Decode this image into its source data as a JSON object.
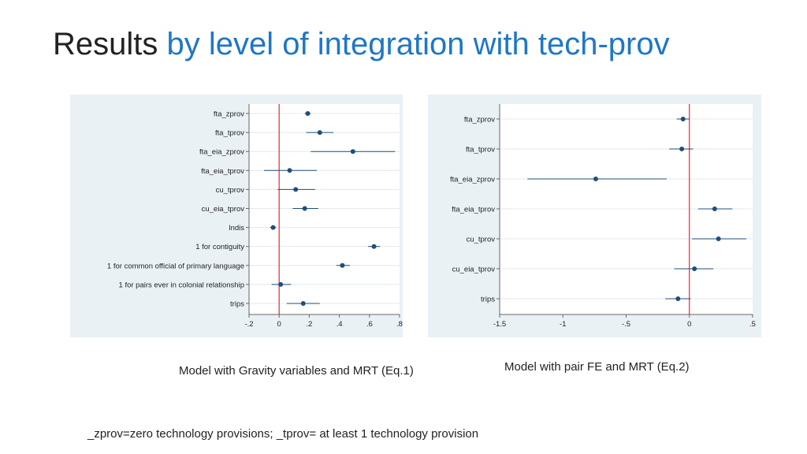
{
  "title": {
    "part1": "Results",
    "part2": "by level of integration with tech-prov"
  },
  "colors": {
    "title_accent": "#1f77c4",
    "point": "#1f4e79",
    "ci_line": "#1f4e79",
    "zero_line": "#e0293a",
    "panel_bg": "#eaf1f5"
  },
  "chart_data": [
    {
      "type": "scatter",
      "subtype": "coefficient-plot",
      "caption": "Model with Gravity variables and MRT (Eq.1)",
      "xlim": [
        -0.2,
        0.8
      ],
      "xticks": [
        -0.2,
        0,
        0.2,
        0.4,
        0.6,
        0.8
      ],
      "xtick_labels": [
        "-.2",
        "0",
        ".2",
        ".4",
        ".6",
        ".8"
      ],
      "zero_line": 0,
      "categories": [
        "fta_zprov",
        "fta_tprov",
        "fta_eia_zprov",
        "fta_eia_tprov",
        "cu_tprov",
        "cu_eia_tprov",
        "lndis",
        "1 for contiguity",
        "1 for common official of primary language",
        "1 for pairs ever in colonial relationship",
        "trips"
      ],
      "values": [
        0.19,
        0.27,
        0.49,
        0.07,
        0.11,
        0.17,
        -0.04,
        0.63,
        0.42,
        0.01,
        0.16
      ],
      "ci_low": [
        0.17,
        0.18,
        0.21,
        -0.1,
        -0.01,
        0.09,
        -0.06,
        0.59,
        0.38,
        -0.05,
        0.05
      ],
      "ci_high": [
        0.21,
        0.36,
        0.77,
        0.25,
        0.24,
        0.26,
        -0.02,
        0.67,
        0.47,
        0.08,
        0.27
      ]
    },
    {
      "type": "scatter",
      "subtype": "coefficient-plot",
      "caption": "Model with pair FE and MRT (Eq.2)",
      "xlim": [
        -1.5,
        0.5
      ],
      "xticks": [
        -1.5,
        -1,
        -0.5,
        0,
        0.5
      ],
      "xtick_labels": [
        "-1.5",
        "-1",
        "-.5",
        "0",
        ".5"
      ],
      "zero_line": 0,
      "categories": [
        "fta_zprov",
        "fta_tprov",
        "fta_eia_zprov",
        "fta_eia_tprov",
        "cu_tprov",
        "cu_eia_tprov",
        "trips"
      ],
      "values": [
        -0.05,
        -0.06,
        -0.74,
        0.2,
        0.23,
        0.04,
        -0.09
      ],
      "ci_low": [
        -0.1,
        -0.16,
        -1.28,
        0.07,
        0.02,
        -0.12,
        -0.19
      ],
      "ci_high": [
        0.0,
        0.03,
        -0.18,
        0.34,
        0.45,
        0.19,
        0.01
      ]
    }
  ],
  "footnote": "_zprov=zero technology provisions; _tprov= at least 1 technology provision"
}
